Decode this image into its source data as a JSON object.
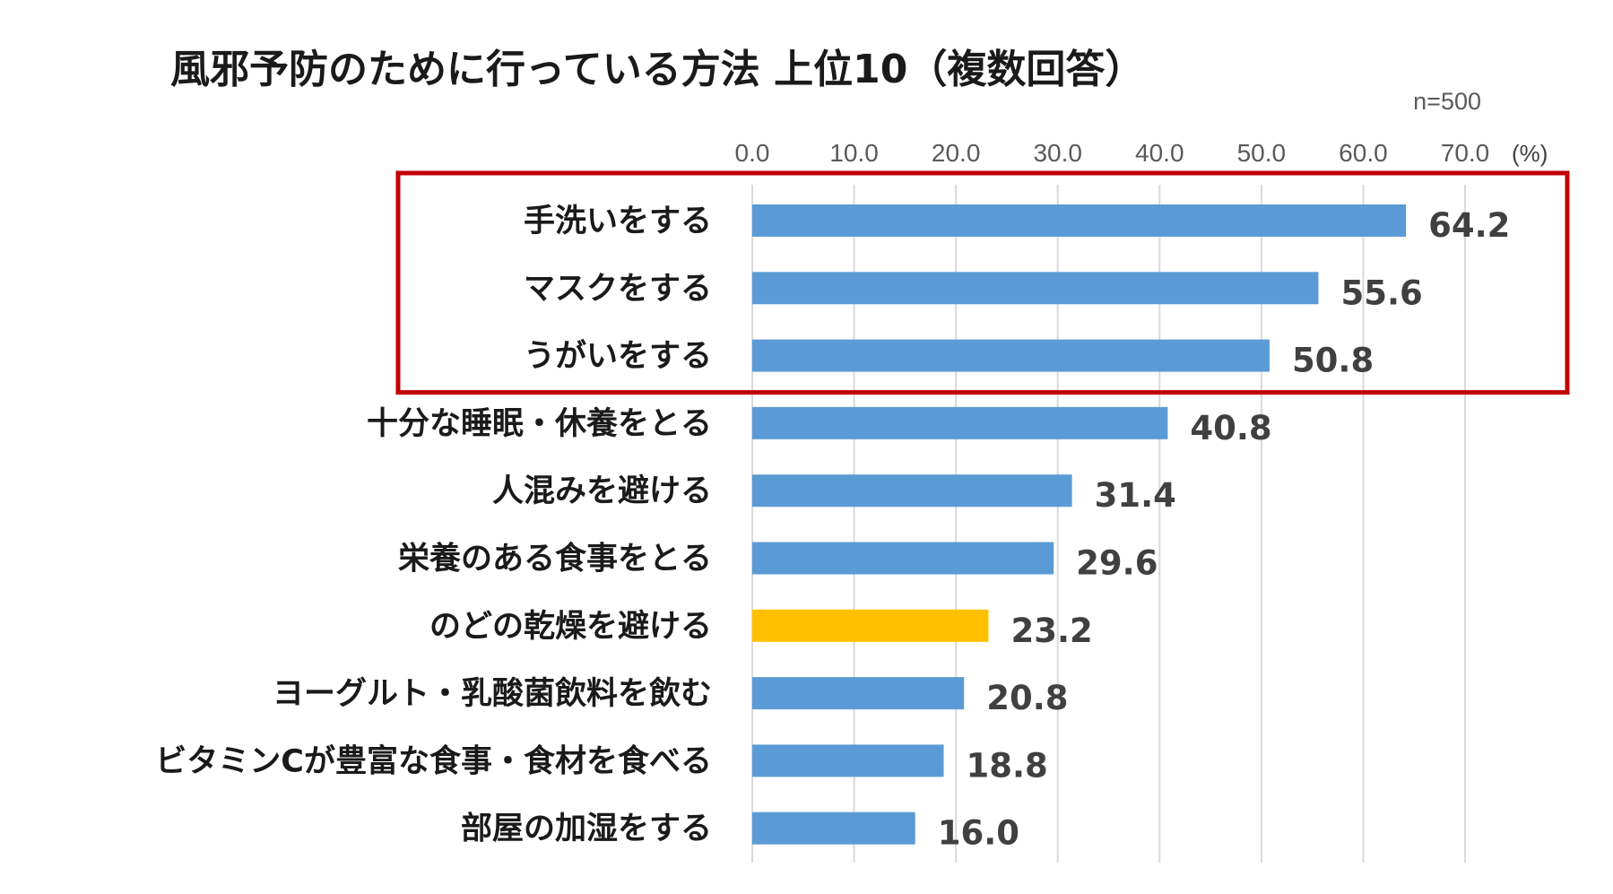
{
  "chart_data": {
    "type": "bar",
    "orientation": "horizontal",
    "title": "風邪予防のために行っている方法 上位10（複数回答）",
    "sample_size": "n=500",
    "unit_label": "(%)",
    "x_ticks": [
      "0.0",
      "10.0",
      "20.0",
      "30.0",
      "40.0",
      "50.0",
      "60.0",
      "70.0"
    ],
    "xlim": [
      0,
      70
    ],
    "grid": true,
    "categories": [
      "手洗いをする",
      "マスクをする",
      "うがいをする",
      "十分な睡眠・休養をとる",
      "人混みを避ける",
      "栄養のある食事をとる",
      "のどの乾燥を避ける",
      "ヨーグルト・乳酸菌飲料を飲む",
      "ビタミンCが豊富な食事・食材を食べる",
      "部屋の加湿をする"
    ],
    "values": [
      64.2,
      55.6,
      50.8,
      40.8,
      31.4,
      29.6,
      23.2,
      20.8,
      18.8,
      16.0
    ],
    "value_labels": [
      "64.2",
      "55.6",
      "50.8",
      "40.8",
      "31.4",
      "29.6",
      "23.2",
      "20.8",
      "18.8",
      "16.0"
    ],
    "highlight_index": 6,
    "highlight_box_categories": [
      0,
      1,
      2
    ],
    "colors": {
      "bar": "#5b9bd5",
      "highlight_bar": "#ffc000",
      "box": "#c00000",
      "grid": "#d9d9d9"
    }
  }
}
